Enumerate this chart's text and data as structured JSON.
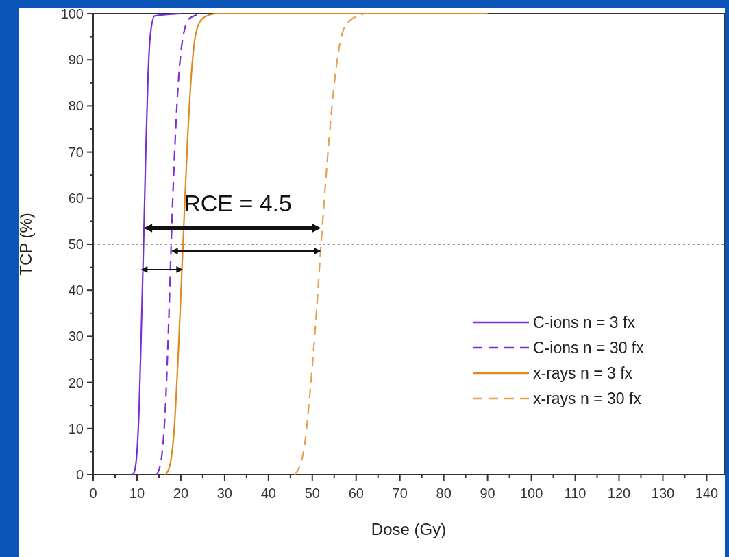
{
  "chart_data": {
    "type": "line",
    "xlabel": "Dose (Gy)",
    "ylabel": "TCP (%)",
    "xlim": [
      0,
      144
    ],
    "ylim": [
      0,
      100
    ],
    "xticks": [
      0,
      10,
      20,
      30,
      40,
      50,
      60,
      70,
      80,
      90,
      100,
      110,
      120,
      130,
      140
    ],
    "yticks": [
      0,
      10,
      20,
      30,
      40,
      50,
      60,
      70,
      80,
      90,
      100
    ],
    "grid": false,
    "legend": "bottom right",
    "marker": "none",
    "series": [
      {
        "name": "C-ions n = 3 fx",
        "color": "#7a2fd6",
        "line_style": "solid",
        "x": [
          9,
          9.5,
          10,
          10.5,
          11,
          11.5,
          12,
          12.5,
          13,
          14,
          20
        ],
        "values": [
          0,
          1,
          5,
          15,
          32,
          50,
          70,
          86,
          95,
          99.5,
          100
        ]
      },
      {
        "name": "C-ions n = 30 fx",
        "color": "#7a2fd6",
        "line_style": "dashed",
        "x": [
          14.5,
          15.5,
          16.5,
          17.3,
          17.8,
          18.5,
          19.5,
          20.5,
          22,
          25
        ],
        "values": [
          0,
          3,
          15,
          35,
          50,
          68,
          86,
          95,
          99,
          100
        ]
      },
      {
        "name": "x-rays n = 3 fx",
        "color": "#e08a1e",
        "line_style": "solid",
        "x": [
          16.5,
          17.5,
          18.5,
          19.5,
          20.5,
          21.5,
          22.5,
          23.5,
          25,
          28,
          40,
          90
        ],
        "values": [
          0,
          2,
          10,
          28,
          50,
          72,
          88,
          96,
          99,
          100,
          100,
          100
        ]
      },
      {
        "name": "x-rays n = 30 fx",
        "color": "#e6a050",
        "line_style": "dashed",
        "x": [
          46,
          48,
          49.5,
          51,
          52,
          53,
          54.5,
          56,
          58,
          62
        ],
        "values": [
          0,
          5,
          18,
          36,
          50,
          63,
          80,
          92,
          98,
          100
        ]
      }
    ],
    "ref_lines": [
      {
        "axis": "y",
        "value": 50,
        "color": "#999999",
        "line_style": "dotted"
      }
    ],
    "annotations": [
      "RCE = 4.5"
    ]
  }
}
